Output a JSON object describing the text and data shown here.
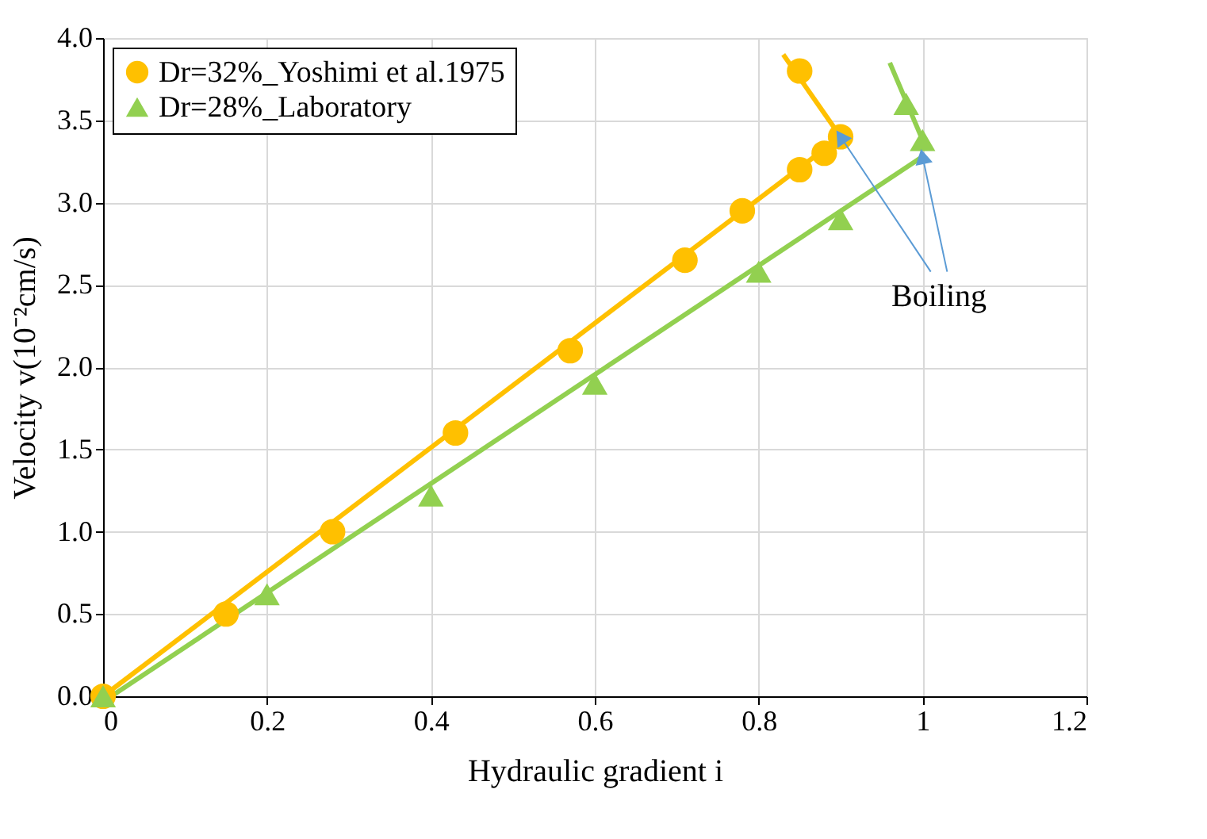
{
  "chart_data": {
    "type": "scatter",
    "xlabel": "Hydraulic gradient i",
    "ylabel": "Velocity v(10⁻²cm/s)",
    "xlim": [
      0,
      1.2
    ],
    "ylim": [
      0,
      4.0
    ],
    "xticks": [
      0,
      0.2,
      0.4,
      0.6,
      0.8,
      1,
      1.2
    ],
    "yticks": [
      {
        "value": 0,
        "label": "0.0"
      },
      0.5,
      {
        "value": 1,
        "label": "1.0"
      },
      1.5,
      {
        "value": 2,
        "label": "2.0"
      },
      2.5,
      {
        "value": 3,
        "label": "3.0"
      },
      3.5,
      {
        "value": 4,
        "label": "4.0"
      }
    ],
    "grid": true,
    "legend": "top left",
    "series": [
      {
        "name": "Dr=32%_Yoshimi et al.1975",
        "marker": "circle",
        "color": "#ffc000",
        "x": [
          0,
          0.15,
          0.28,
          0.43,
          0.57,
          0.71,
          0.78,
          0.85,
          0.88,
          0.9,
          0.85
        ],
        "values": [
          0,
          0.5,
          1.0,
          1.6,
          2.1,
          2.65,
          2.95,
          3.2,
          3.3,
          3.4,
          3.8
        ]
      },
      {
        "name": "Dr=28%_Laboratory",
        "marker": "triangle",
        "color": "#92d050",
        "x": [
          0,
          0.2,
          0.4,
          0.6,
          0.8,
          0.9,
          1.0,
          0.98
        ],
        "values": [
          0,
          0.62,
          1.22,
          1.9,
          2.58,
          2.9,
          3.38,
          3.6
        ]
      },
      {
        "type": "line",
        "color": "#ffc000",
        "x": [
          0,
          0.9
        ],
        "values": [
          0,
          3.4
        ]
      },
      {
        "type": "line",
        "color": "#ffc000",
        "x": [
          0.83,
          0.9
        ],
        "values": [
          3.9,
          3.4
        ]
      },
      {
        "type": "line",
        "color": "#92d050",
        "x": [
          0.01,
          1.0
        ],
        "values": [
          0,
          3.28
        ]
      },
      {
        "type": "line",
        "color": "#92d050",
        "x": [
          0.96,
          1.0
        ],
        "values": [
          3.85,
          3.38
        ]
      }
    ],
    "annotations": [
      {
        "text": "Boiling",
        "x": 1.0,
        "y": 3.28
      }
    ]
  }
}
